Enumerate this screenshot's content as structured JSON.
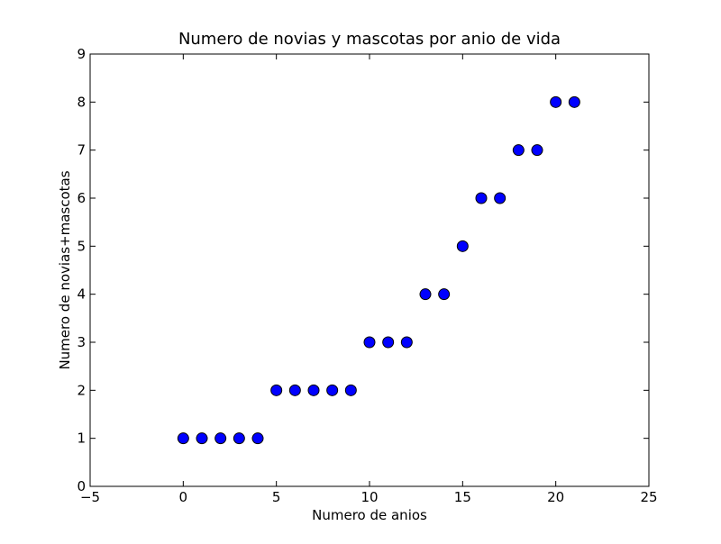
{
  "chart_data": {
    "type": "scatter",
    "title": "Numero de novias y mascotas por anio de vida",
    "xlabel": "Numero de anios",
    "ylabel": "Numero de novias+mascotas",
    "xlim": [
      -5,
      25
    ],
    "ylim": [
      0,
      9
    ],
    "x_ticks": [
      -5,
      0,
      5,
      10,
      15,
      20,
      25
    ],
    "y_ticks": [
      0,
      1,
      2,
      3,
      4,
      5,
      6,
      7,
      8,
      9
    ],
    "x_tick_labels": [
      "−5",
      "0",
      "5",
      "10",
      "15",
      "20",
      "25"
    ],
    "y_tick_labels": [
      "0",
      "1",
      "2",
      "3",
      "4",
      "5",
      "6",
      "7",
      "8",
      "9"
    ],
    "grid": false,
    "legend": "none",
    "marker_color": "#0000ff",
    "marker_edge_color": "#000000",
    "x": [
      0,
      1,
      2,
      3,
      4,
      5,
      6,
      7,
      8,
      9,
      10,
      11,
      12,
      13,
      14,
      15,
      16,
      17,
      18,
      19,
      20,
      21
    ],
    "y": [
      1,
      1,
      1,
      1,
      1,
      2,
      2,
      2,
      2,
      2,
      3,
      3,
      3,
      4,
      4,
      5,
      6,
      6,
      7,
      7,
      8,
      8
    ]
  }
}
